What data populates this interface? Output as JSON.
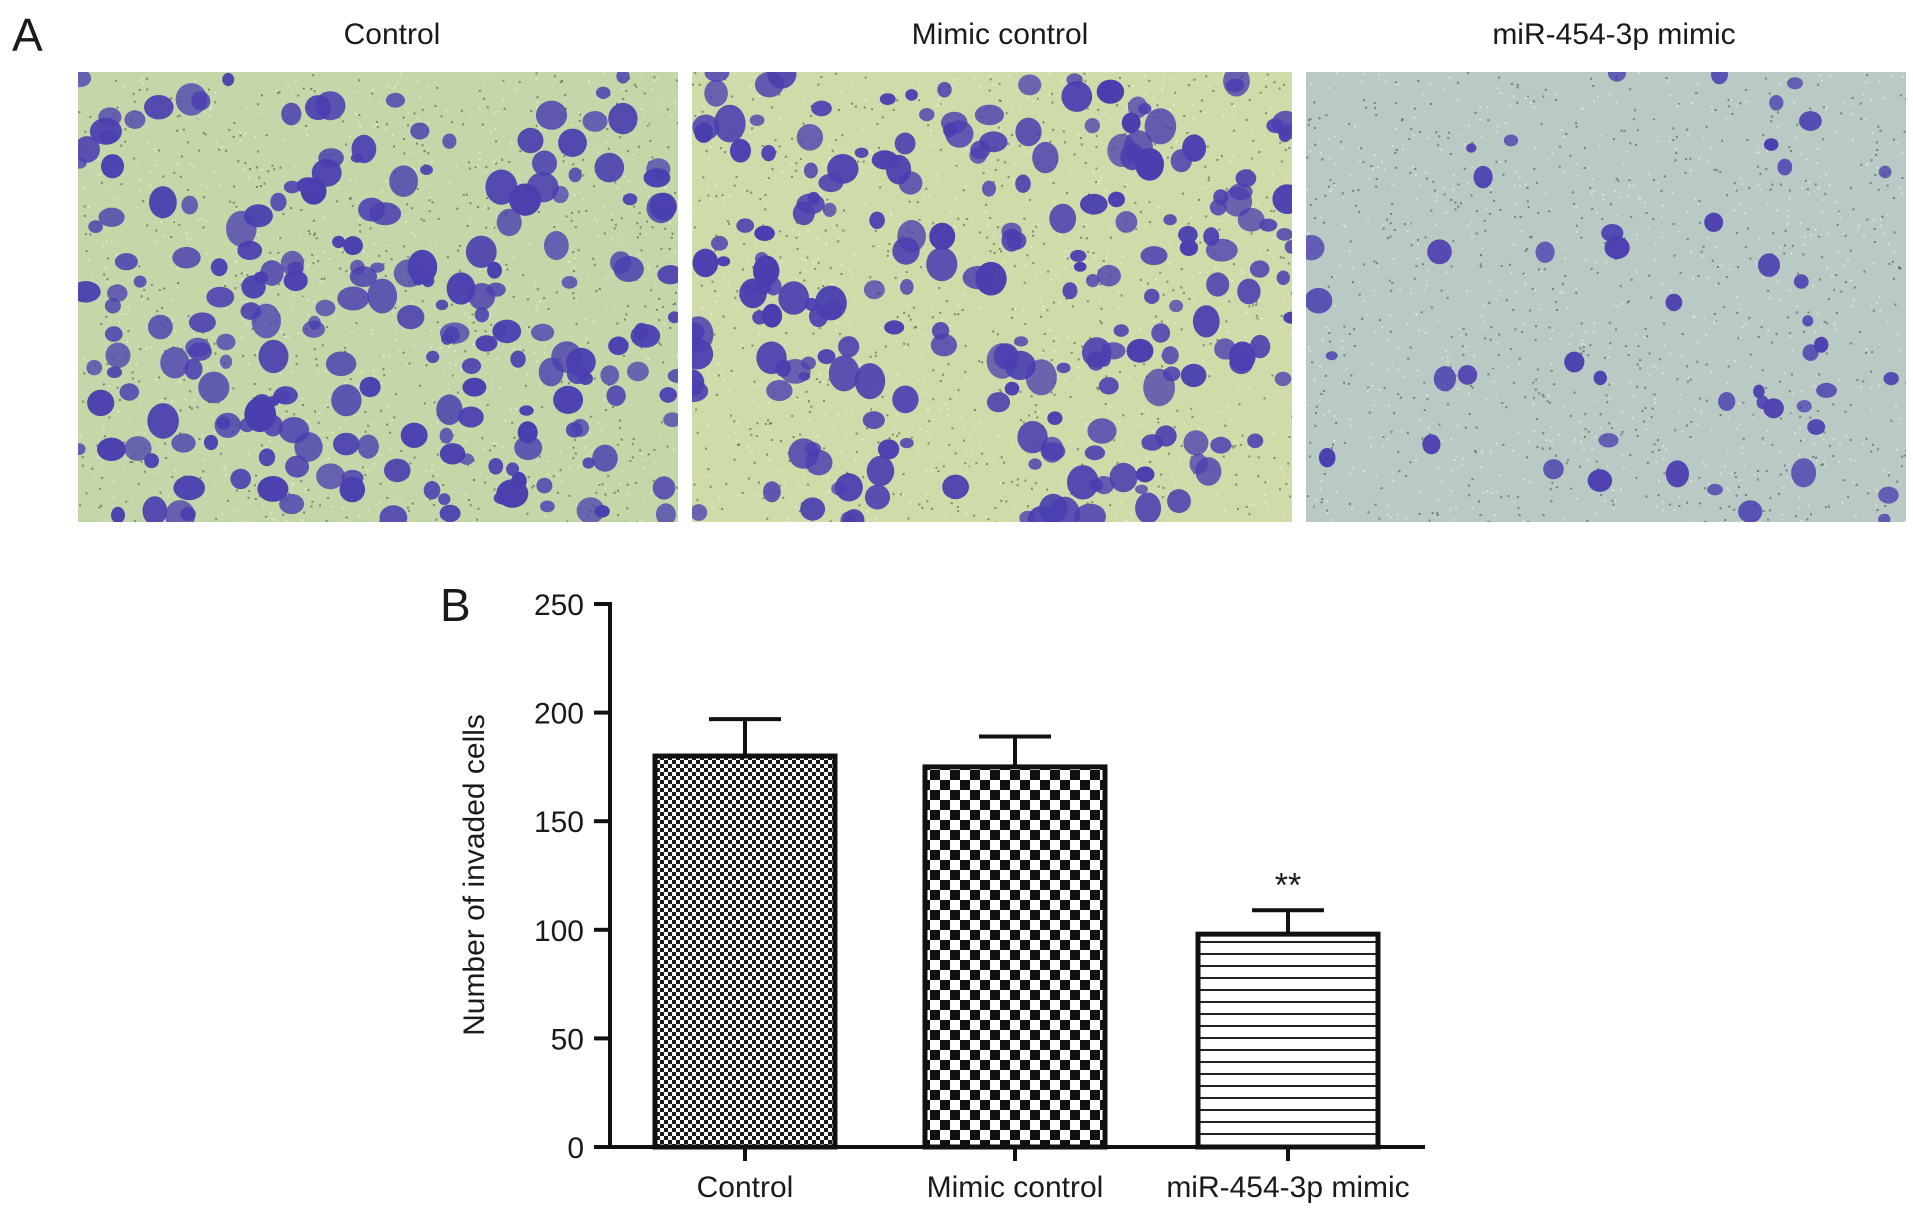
{
  "panel_a": {
    "letter": "A",
    "images": [
      {
        "label": "Control",
        "cell_density": "high",
        "tone": "#c4d7a8"
      },
      {
        "label": "Mimic control",
        "cell_density": "high",
        "tone": "#cfdcaa"
      },
      {
        "label": "miR-454-3p mimic",
        "cell_density": "low",
        "tone": "#b9c9c4"
      }
    ],
    "cell_color": "#4b3fb0"
  },
  "panel_b": {
    "letter": "B"
  },
  "chart_data": {
    "type": "bar",
    "categories": [
      "Control",
      "Mimic control",
      "miR-454-3p mimic"
    ],
    "values": [
      180,
      175,
      98
    ],
    "errors": [
      17,
      14,
      11
    ],
    "annotations": [
      "",
      "",
      "**"
    ],
    "patterns": [
      "fine-checker",
      "coarse-checker",
      "horizontal-lines"
    ],
    "ylabel": "Number of invaded cells",
    "xlabel": "",
    "title": "",
    "ylim": [
      0,
      250
    ],
    "yticks": [
      0,
      50,
      100,
      150,
      200,
      250
    ],
    "grid": false,
    "legend": "none"
  }
}
